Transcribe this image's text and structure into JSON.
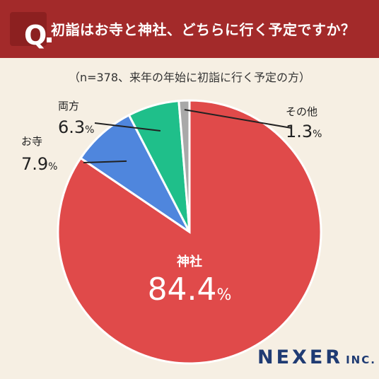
{
  "header": {
    "q_mark": "Q",
    "question": "初詣はお寺と神社、どちらに行く予定ですか？"
  },
  "subtitle": "（n=378、来年の年始に初詣に行く予定の方）",
  "brand": {
    "name": "NEXER",
    "suffix": "INC."
  },
  "colors": {
    "header_bg": "#a32a2a",
    "background": "#f6efe3",
    "神社": "#e04a4a",
    "お寺": "#4f86dd",
    "両方": "#1fbf8a",
    "その他": "#a9a9a9",
    "brand": "#1f3b73"
  },
  "chart_data": {
    "type": "pie",
    "title": "初詣はお寺と神社、どちらに行く予定ですか？",
    "subtitle": "（n=378、来年の年始に初詣に行く予定の方）",
    "categories": [
      "神社",
      "お寺",
      "両方",
      "その他"
    ],
    "values": [
      84.4,
      7.9,
      6.3,
      1.3
    ],
    "unit": "%",
    "value_labels": [
      "84.4",
      "7.9",
      "6.3",
      "1.3"
    ],
    "colors": [
      "#e04a4a",
      "#4f86dd",
      "#1fbf8a",
      "#a9a9a9"
    ]
  }
}
